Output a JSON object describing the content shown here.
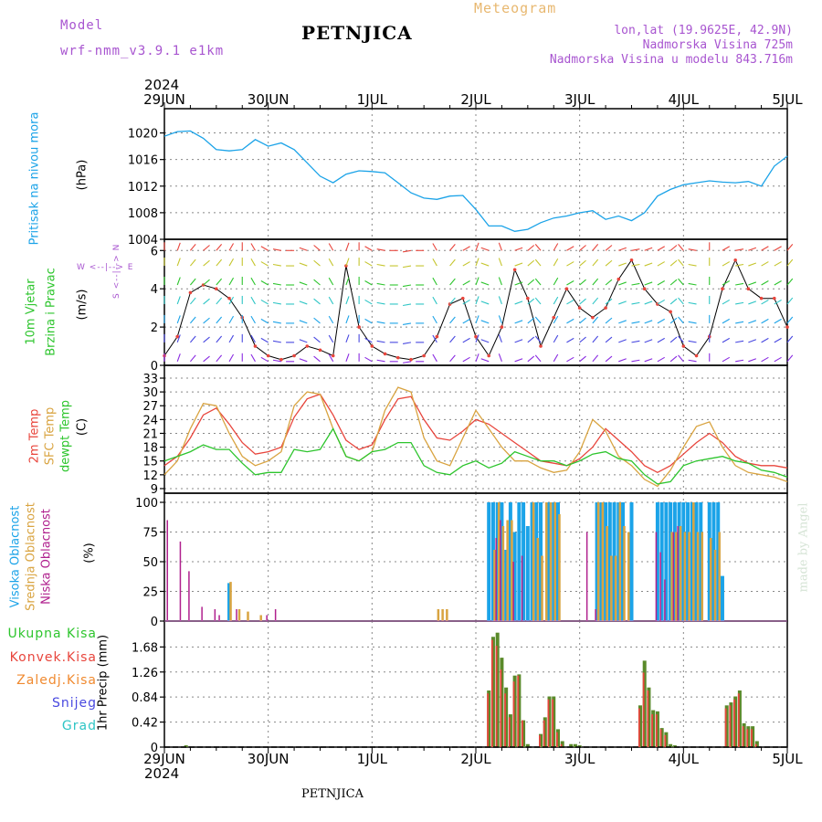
{
  "header": {
    "model_label": "Model",
    "model_name": "wrf-nmm_v3.9.1 e1km",
    "title": "PETNJICA",
    "meteogram_label": "Meteogram",
    "lonlat": "lon,lat (19.9625E, 42.9N)",
    "elevation": "Nadmorska Visina 725m",
    "model_elevation": "Nadmorska Visina u modelu 843.716m",
    "year_top": "2024",
    "year_bottom": "2024",
    "footer_title": "PETNJICA",
    "watermark": "made by Angel"
  },
  "colors": {
    "pressure": "#1ba3e8",
    "temp2m": "#e8453c",
    "sfc_temp": "#d9a441",
    "dewpt": "#2dc52d",
    "high_cloud": "#1ba3e8",
    "mid_cloud": "#d9a441",
    "low_cloud": "#b0208e",
    "total_precip": "#5a8a2a",
    "conv_precip": "#e8453c",
    "frozen_precip": "#f08a30",
    "snow": "#4848e0",
    "hail": "#2dc5c5",
    "model_label": "#a855d0",
    "meteogram_label": "#e8b870"
  },
  "chart_data": [
    {
      "type": "line",
      "panel": "pressure",
      "ylabel_name": "Pritisak na nivou mora",
      "ylabel_unit": "(hPa)",
      "ylim": [
        1004,
        1022
      ],
      "yticks": [
        1004,
        1008,
        1012,
        1016,
        1020
      ],
      "x_unit": "hours since 29JUN 00",
      "x": [
        0,
        3,
        6,
        9,
        12,
        15,
        18,
        21,
        24,
        27,
        30,
        33,
        36,
        39,
        42,
        45,
        48,
        51,
        54,
        57,
        60,
        63,
        66,
        69,
        72,
        75,
        78,
        81,
        84,
        87,
        90,
        93,
        96,
        99,
        102,
        105,
        108,
        111,
        114,
        117,
        120,
        123,
        126,
        129,
        132,
        135,
        138,
        141,
        144
      ],
      "series": [
        {
          "values": [
            1019.5,
            1020.2,
            1020.3,
            1019.2,
            1017.5,
            1017.3,
            1017.5,
            1019.0,
            1018.0,
            1018.5,
            1017.5,
            1015.5,
            1013.5,
            1012.5,
            1013.8,
            1014.3,
            1014.2,
            1014.0,
            1012.5,
            1011.0,
            1010.2,
            1010.0,
            1010.5,
            1010.6,
            1008.5,
            1006.0,
            1006.0,
            1005.2,
            1005.5,
            1006.5,
            1007.2,
            1007.5,
            1008.0,
            1008.3,
            1007.0,
            1007.5,
            1006.8,
            1008.0,
            1010.5,
            1011.5,
            1012.2,
            1012.5,
            1012.8,
            1012.6,
            1012.5,
            1012.7,
            1012.0,
            1015.0,
            1016.5
          ]
        }
      ]
    },
    {
      "type": "scatter",
      "panel": "wind",
      "ylabel_name_1": "10m Vjetar",
      "ylabel_name_2": "Brzina i Pravac",
      "ylabel_unit": "(m/s)",
      "ylim": [
        0,
        6.3
      ],
      "yticks": [
        0,
        2,
        4,
        6
      ],
      "compass_w": "W",
      "compass_e": "E",
      "compass_arrows": "<--|-->",
      "compass_s": "S",
      "compass_n": "N",
      "x": [
        0,
        3,
        6,
        9,
        12,
        15,
        18,
        21,
        24,
        27,
        30,
        33,
        36,
        39,
        42,
        45,
        48,
        51,
        54,
        57,
        60,
        63,
        66,
        69,
        72,
        75,
        78,
        81,
        84,
        87,
        90,
        93,
        96,
        99,
        102,
        105,
        108,
        111,
        114,
        117,
        120,
        123,
        126,
        129,
        132,
        135,
        138,
        141,
        144
      ],
      "series": [
        {
          "name": "speed",
          "values": [
            0.5,
            1.5,
            3.8,
            4.2,
            4.0,
            3.5,
            2.5,
            1.0,
            0.5,
            0.3,
            0.5,
            1.0,
            0.8,
            0.5,
            5.2,
            2.0,
            1.0,
            0.6,
            0.4,
            0.3,
            0.5,
            1.5,
            3.2,
            3.5,
            1.5,
            0.5,
            2.0,
            5.0,
            3.5,
            1.0,
            2.5,
            4.0,
            3.0,
            2.5,
            3.0,
            4.5,
            5.5,
            4.0,
            3.2,
            2.8,
            1.0,
            0.5,
            1.5,
            4.0,
            5.5,
            4.0,
            3.5,
            3.5,
            2.0
          ]
        },
        {
          "name": "direction_deg",
          "values": [
            180,
            200,
            220,
            230,
            220,
            210,
            180,
            150,
            120,
            100,
            90,
            110,
            130,
            150,
            200,
            180,
            120,
            100,
            90,
            80,
            90,
            150,
            220,
            240,
            200,
            110,
            160,
            250,
            230,
            140,
            210,
            240,
            230,
            220,
            230,
            250,
            260,
            250,
            240,
            230,
            140,
            100,
            180,
            240,
            260,
            250,
            240,
            240,
            220
          ]
        }
      ]
    },
    {
      "type": "line",
      "panel": "temperature",
      "ylabel_name_1": "2m Temp",
      "ylabel_name_2": "SFC Temp",
      "ylabel_name_3": "dewpt Temp",
      "ylabel_unit": "(C)",
      "ylim": [
        8,
        33
      ],
      "yticks": [
        9,
        12,
        15,
        18,
        21,
        24,
        27,
        30,
        33
      ],
      "x": [
        0,
        3,
        6,
        9,
        12,
        15,
        18,
        21,
        24,
        27,
        30,
        33,
        36,
        39,
        42,
        45,
        48,
        51,
        54,
        57,
        60,
        63,
        66,
        69,
        72,
        75,
        78,
        81,
        84,
        87,
        90,
        93,
        96,
        99,
        102,
        105,
        108,
        111,
        114,
        117,
        120,
        123,
        126,
        129,
        132,
        135,
        138,
        141,
        144
      ],
      "series": [
        {
          "name": "2m Temp",
          "values": [
            14.0,
            16.0,
            20.0,
            25.0,
            26.5,
            23.0,
            19.0,
            16.5,
            17.0,
            18.0,
            24.5,
            28.5,
            29.5,
            25.0,
            19.5,
            17.5,
            18.5,
            24.0,
            28.5,
            29.0,
            24.0,
            20.0,
            19.5,
            21.5,
            24.0,
            23.0,
            21.0,
            19.0,
            17.0,
            15.0,
            14.5,
            14.0,
            15.5,
            18.0,
            22.0,
            19.5,
            17.0,
            14.0,
            12.5,
            14.0,
            16.5,
            19.0,
            21.0,
            19.0,
            16.0,
            14.5,
            14.0,
            14.0,
            13.5
          ]
        },
        {
          "name": "SFC Temp",
          "values": [
            12.0,
            15.0,
            22.0,
            27.5,
            27.0,
            21.0,
            16.0,
            14.0,
            15.0,
            17.0,
            27.0,
            30.0,
            29.5,
            22.0,
            16.0,
            15.0,
            17.0,
            26.0,
            31.0,
            30.0,
            20.0,
            15.0,
            14.0,
            20.0,
            26.0,
            22.0,
            18.0,
            15.0,
            15.0,
            13.5,
            12.5,
            13.0,
            17.0,
            24.0,
            21.5,
            16.0,
            14.0,
            11.0,
            9.5,
            13.0,
            18.0,
            22.5,
            23.5,
            18.0,
            14.0,
            12.5,
            12.0,
            11.5,
            10.5
          ]
        },
        {
          "name": "dewpt Temp",
          "values": [
            15.0,
            16.0,
            17.0,
            18.5,
            17.5,
            17.5,
            14.5,
            12.0,
            12.5,
            12.5,
            17.5,
            17.0,
            17.5,
            22.0,
            16.0,
            15.0,
            17.0,
            17.5,
            19.0,
            19.0,
            14.0,
            12.5,
            12.0,
            14.0,
            15.0,
            13.5,
            14.5,
            17.0,
            16.0,
            15.0,
            15.0,
            14.0,
            15.0,
            16.5,
            17.0,
            15.5,
            15.0,
            12.0,
            10.0,
            10.5,
            14.0,
            15.0,
            15.5,
            16.0,
            15.0,
            14.5,
            13.0,
            12.5,
            11.5
          ]
        }
      ]
    },
    {
      "type": "bar",
      "panel": "clouds",
      "ylabel_name_1": "Visoka Oblacnost",
      "ylabel_name_2": "Srednja Oblacnost",
      "ylabel_name_3": "Niska Oblacnost",
      "ylabel_unit": "(%)",
      "ylim": [
        0,
        100
      ],
      "yticks": [
        0,
        25,
        50,
        75,
        100
      ],
      "x": [
        1,
        4,
        6,
        9,
        12,
        13,
        15,
        17,
        19,
        22,
        24,
        26,
        63,
        64,
        65,
        75,
        76,
        77,
        78,
        79,
        80,
        81,
        82,
        83,
        84,
        85,
        86,
        87,
        88,
        89,
        90,
        91,
        98,
        100,
        101,
        102,
        103,
        104,
        105,
        106,
        107,
        108,
        109,
        114,
        115,
        116,
        117,
        118,
        119,
        120,
        121,
        122,
        123,
        124,
        125,
        126,
        127,
        128,
        129
      ],
      "series": [
        {
          "name": "Visoka Oblacnost",
          "values": [
            0,
            0,
            0,
            0,
            0,
            0,
            32,
            0,
            0,
            0,
            0,
            0,
            0,
            0,
            0,
            100,
            100,
            100,
            100,
            60,
            100,
            75,
            100,
            100,
            80,
            100,
            100,
            100,
            0,
            100,
            100,
            100,
            0,
            100,
            100,
            100,
            100,
            100,
            100,
            100,
            0,
            100,
            0,
            100,
            100,
            100,
            100,
            100,
            100,
            100,
            100,
            100,
            100,
            100,
            0,
            100,
            100,
            100,
            38
          ]
        },
        {
          "name": "Srednja Oblacnost",
          "values": [
            0,
            0,
            0,
            0,
            0,
            0,
            33,
            10,
            8,
            5,
            0,
            0,
            10,
            10,
            10,
            0,
            60,
            100,
            80,
            85,
            85,
            0,
            0,
            0,
            0,
            100,
            70,
            55,
            100,
            100,
            100,
            90,
            0,
            100,
            100,
            80,
            55,
            55,
            100,
            80,
            75,
            0,
            0,
            0,
            0,
            0,
            75,
            75,
            80,
            75,
            75,
            100,
            75,
            75,
            0,
            70,
            60,
            75,
            0
          ]
        },
        {
          "name": "Niska Oblacnost",
          "values": [
            85,
            67,
            42,
            12,
            10,
            5,
            0,
            10,
            0,
            0,
            5,
            10,
            0,
            0,
            0,
            0,
            0,
            70,
            85,
            0,
            0,
            50,
            0,
            55,
            0,
            0,
            0,
            0,
            0,
            0,
            0,
            0,
            75,
            10,
            0,
            0,
            0,
            0,
            0,
            0,
            0,
            0,
            0,
            75,
            58,
            35,
            0,
            75,
            80,
            0,
            0,
            0,
            0,
            0,
            0,
            0,
            0,
            0,
            0
          ]
        }
      ]
    },
    {
      "type": "bar",
      "panel": "precip",
      "legend": [
        "Ukupna Kisa",
        "Konvek.Kisa",
        "Zaledj.Kisa",
        "Snijeg",
        "Grad"
      ],
      "ylabel_unit": "1hr Precip (mm)",
      "ylim": [
        0,
        1.9
      ],
      "yticks": [
        0,
        0.42,
        0.84,
        1.26,
        1.68
      ],
      "ytick_labels": [
        "0",
        "0.42",
        "0.84",
        "1.26",
        "1.68"
      ],
      "x": [
        5,
        75,
        76,
        77,
        78,
        79,
        80,
        81,
        82,
        83,
        84,
        87,
        88,
        89,
        90,
        91,
        92,
        94,
        95,
        96,
        110,
        111,
        112,
        113,
        114,
        115,
        116,
        117,
        118,
        130,
        131,
        132,
        133,
        134,
        135,
        136,
        137
      ],
      "series": [
        {
          "name": "Ukupna Kisa",
          "values": [
            0.03,
            0.95,
            1.85,
            1.92,
            1.5,
            1.0,
            0.55,
            1.2,
            1.22,
            0.45,
            0.05,
            0.22,
            0.5,
            0.85,
            0.85,
            0.3,
            0.1,
            0.05,
            0.05,
            0.03,
            0.7,
            1.45,
            1.0,
            0.62,
            0.6,
            0.32,
            0.25,
            0.05,
            0.03,
            0.7,
            0.75,
            0.85,
            0.95,
            0.4,
            0.35,
            0.35,
            0.1
          ]
        },
        {
          "name": "Konvek.Kisa",
          "values": [
            0.0,
            0.9,
            1.8,
            1.7,
            1.3,
            0.9,
            0.5,
            1.1,
            1.2,
            0.45,
            0.0,
            0.2,
            0.45,
            0.8,
            0.8,
            0.25,
            0.05,
            0.0,
            0.0,
            0.0,
            0.65,
            1.25,
            0.95,
            0.55,
            0.55,
            0.3,
            0.2,
            0.0,
            0.0,
            0.65,
            0.7,
            0.8,
            0.9,
            0.35,
            0.3,
            0.3,
            0.05
          ]
        }
      ]
    }
  ],
  "x_axis": {
    "tick_labels": [
      "29JUN",
      "30JUN",
      "1JUL",
      "2JUL",
      "3JUL",
      "4JUL",
      "5JUL"
    ],
    "tick_hours": [
      0,
      24,
      48,
      72,
      96,
      120,
      144
    ]
  }
}
